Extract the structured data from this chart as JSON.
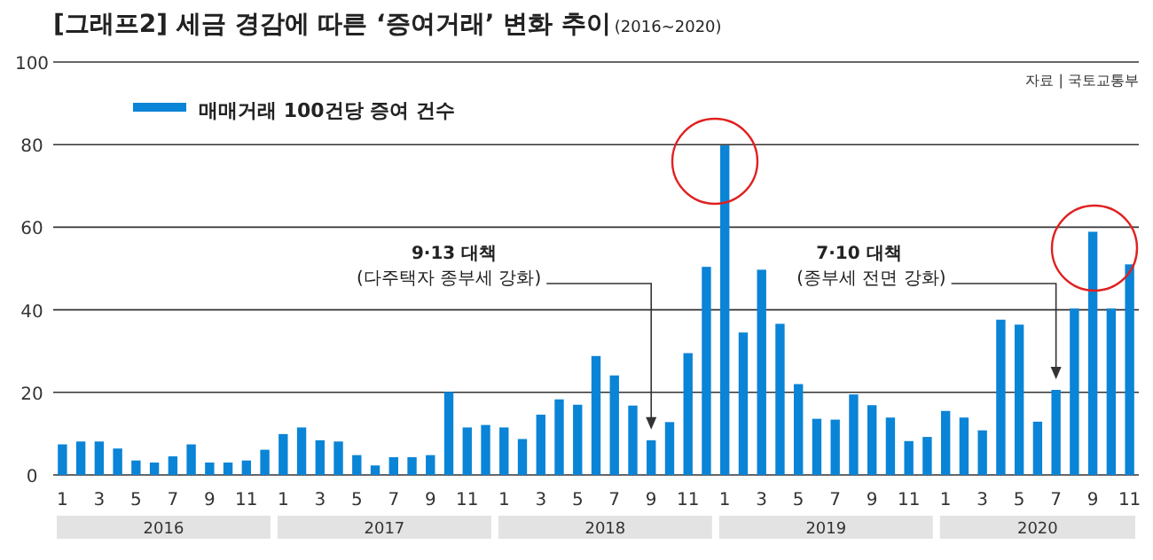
{
  "chart_data": {
    "type": "bar",
    "title": "[그래프2] 세금 경감에 따른 ‘증여거래’ 변화 추이",
    "subtitle": "(2016~2020)",
    "categories": [
      "1",
      null,
      "3",
      null,
      "5",
      null,
      "7",
      null,
      "9",
      null,
      "11",
      null,
      "1",
      null,
      "3",
      null,
      "5",
      null,
      "7",
      null,
      "9",
      null,
      "11",
      null,
      "1",
      null,
      "3",
      null,
      "5",
      null,
      "7",
      null,
      "9",
      null,
      "11",
      null,
      "1",
      null,
      "3",
      null,
      "5",
      null,
      "7",
      null,
      "9",
      null,
      "11",
      null,
      "1",
      null,
      "3",
      null,
      "5",
      null,
      "7",
      null,
      "9",
      null,
      "11"
    ],
    "series": [
      {
        "name": "매매거래 100건당 증여 건수",
        "color": "#0a84d6",
        "values": [
          7.4,
          8.1,
          8.1,
          6.4,
          3.5,
          3.0,
          4.5,
          7.4,
          3.0,
          3.0,
          3.5,
          6.1,
          9.9,
          11.5,
          8.4,
          8.1,
          4.8,
          2.3,
          4.3,
          4.3,
          4.8,
          20.1,
          11.5,
          12.1,
          11.5,
          8.7,
          14.6,
          18.3,
          17.0,
          28.8,
          24.1,
          16.8,
          8.4,
          12.8,
          29.5,
          50.4,
          79.8,
          34.5,
          49.7,
          36.6,
          22.0,
          13.6,
          13.4,
          19.5,
          16.9,
          13.9,
          8.2,
          9.2,
          15.5,
          13.9,
          10.8,
          37.6,
          36.4,
          12.9,
          20.6,
          40.3,
          58.9,
          40.3,
          51.0
        ]
      }
    ],
    "ylim": [
      0,
      100
    ],
    "yticks": [
      0,
      20,
      40,
      60,
      80,
      100
    ],
    "grid": "y",
    "legend": "top left",
    "annotations": [
      "자료 | 국토교통부",
      "2016",
      "2017",
      "2018",
      "2019",
      "2020",
      "9·13 대책\n(다주택자 종부세 강화)",
      "7·10 대책\n(종부세 전면 강화)"
    ]
  }
}
